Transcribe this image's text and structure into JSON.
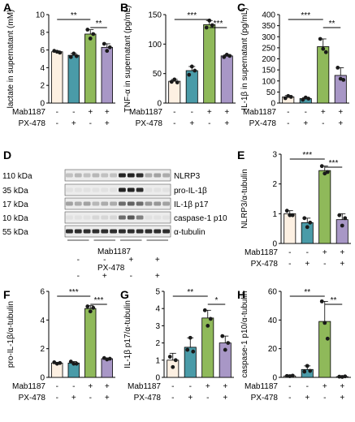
{
  "colors": {
    "ctrl": "#fdf0e2",
    "px": "#4a9ba8",
    "mab": "#8fb95a",
    "both": "#a897c6"
  },
  "groups": {
    "row1_label": "Mab1187",
    "row2_label": "PX-478",
    "row1_signs": [
      "-",
      "-",
      "+",
      "+"
    ],
    "row2_signs": [
      "-",
      "+",
      "-",
      "+"
    ]
  },
  "sig_labels": {
    "double": "**",
    "triple": "***",
    "single": "*"
  },
  "blot": {
    "letter": "D",
    "rows": [
      {
        "kda": "110 kDa",
        "name": "NLRP3"
      },
      {
        "kda": "35 kDa",
        "name": "pro-IL-1β"
      },
      {
        "kda": "17 kDa",
        "name": "IL-1β p17"
      },
      {
        "kda": "10 kDa",
        "name": "caspase-1 p10"
      },
      {
        "kda": "55 kDa",
        "name": "α-tubulin"
      }
    ],
    "mab_signs": [
      "-",
      "-",
      "+",
      "+"
    ],
    "px_signs": [
      "-",
      "+",
      "-",
      "+"
    ]
  },
  "chart_data": [
    {
      "id": "A",
      "type": "bar",
      "ylabel": "lactate in supernatant (mM)",
      "ylim": [
        0,
        10
      ],
      "yticks": [
        0,
        2,
        4,
        6,
        8,
        10
      ],
      "categories": [
        "-/-",
        "-/+",
        "+/-",
        "+/+"
      ],
      "values": [
        5.8,
        5.4,
        7.8,
        6.3
      ],
      "points": [
        [
          5.9,
          5.8,
          5.7
        ],
        [
          5.2,
          5.6,
          5.3
        ],
        [
          8.3,
          7.3,
          7.8
        ],
        [
          6.7,
          5.9,
          6.3
        ]
      ],
      "sig": [
        {
          "from": 0,
          "to": 2,
          "label": "**",
          "level": 0
        },
        {
          "from": 2,
          "to": 3,
          "label": "**",
          "level": 1
        }
      ]
    },
    {
      "id": "B",
      "type": "bar",
      "ylabel": "TNF-α in supernatant (pg/mL)",
      "ylim": [
        0,
        150
      ],
      "yticks": [
        0,
        50,
        100,
        150
      ],
      "categories": [
        "-/-",
        "-/+",
        "+/-",
        "+/+"
      ],
      "values": [
        37,
        55,
        133,
        80
      ],
      "points": [
        [
          36,
          40,
          35
        ],
        [
          48,
          62,
          55
        ],
        [
          128,
          140,
          132
        ],
        [
          78,
          82,
          80
        ]
      ],
      "sig": [
        {
          "from": 0,
          "to": 2,
          "label": "***",
          "level": 0
        },
        {
          "from": 2,
          "to": 3,
          "label": "***",
          "level": 1
        }
      ]
    },
    {
      "id": "C",
      "type": "bar",
      "ylabel": "IL-1β in supernatant (pg/mL)",
      "ylim": [
        0,
        400
      ],
      "yticks": [
        0,
        50,
        100,
        150,
        200,
        250,
        300,
        350,
        400
      ],
      "categories": [
        "-/-",
        "-/+",
        "+/-",
        "+/+"
      ],
      "values": [
        28,
        20,
        255,
        125
      ],
      "points": [
        [
          22,
          32,
          28
        ],
        [
          15,
          25,
          20
        ],
        [
          290,
          245,
          230
        ],
        [
          160,
          110,
          105
        ]
      ],
      "sig": [
        {
          "from": 0,
          "to": 2,
          "label": "***",
          "level": 0
        },
        {
          "from": 2,
          "to": 3,
          "label": "**",
          "level": 1
        }
      ]
    },
    {
      "id": "E",
      "type": "bar",
      "ylabel": "NLRP3/α-tubulin",
      "ylim": [
        0,
        3
      ],
      "yticks": [
        0,
        1,
        2,
        3
      ],
      "categories": [
        "-/-",
        "-/+",
        "+/-",
        "+/+"
      ],
      "values": [
        1.0,
        0.7,
        2.45,
        0.8
      ],
      "points": [
        [
          1.1,
          0.95,
          0.95
        ],
        [
          0.85,
          0.55,
          0.7
        ],
        [
          2.6,
          2.35,
          2.4
        ],
        [
          0.95,
          0.6,
          0.85
        ]
      ],
      "sig": [
        {
          "from": 0,
          "to": 2,
          "label": "***",
          "level": 0
        },
        {
          "from": 2,
          "to": 3,
          "label": "***",
          "level": 1
        }
      ]
    },
    {
      "id": "F",
      "type": "bar",
      "ylabel": "pro-IL-1β/α-tubulin",
      "ylim": [
        0,
        6
      ],
      "yticks": [
        0,
        2,
        4,
        6
      ],
      "categories": [
        "-/-",
        "-/+",
        "+/-",
        "+/+"
      ],
      "values": [
        1.0,
        1.0,
        4.8,
        1.3
      ],
      "points": [
        [
          1.05,
          0.95,
          1.0
        ],
        [
          1.1,
          0.95,
          0.95
        ],
        [
          4.95,
          4.6,
          4.85
        ],
        [
          1.35,
          1.25,
          1.3
        ]
      ],
      "sig": [
        {
          "from": 0,
          "to": 2,
          "label": "***",
          "level": 0
        },
        {
          "from": 2,
          "to": 3,
          "label": "***",
          "level": 1
        }
      ]
    },
    {
      "id": "G",
      "type": "bar",
      "ylabel": "IL-1β p17/α-tubulin",
      "ylim": [
        0,
        5
      ],
      "yticks": [
        0,
        1,
        2,
        3,
        4,
        5
      ],
      "categories": [
        "-/-",
        "-/+",
        "+/-",
        "+/+"
      ],
      "values": [
        1.0,
        1.75,
        3.45,
        2.0
      ],
      "points": [
        [
          1.2,
          0.6,
          1.0
        ],
        [
          1.6,
          2.3,
          1.5
        ],
        [
          3.9,
          3.0,
          3.4
        ],
        [
          2.4,
          1.6,
          2.0
        ]
      ],
      "sig": [
        {
          "from": 0,
          "to": 2,
          "label": "**",
          "level": 0
        },
        {
          "from": 2,
          "to": 3,
          "label": "*",
          "level": 1
        }
      ]
    },
    {
      "id": "H",
      "type": "bar",
      "ylabel": "caspase-1 p10/α-tubulin",
      "ylim": [
        0,
        60
      ],
      "yticks": [
        0,
        20,
        40,
        60
      ],
      "categories": [
        "-/-",
        "-/+",
        "+/-",
        "+/+"
      ],
      "values": [
        1.0,
        5.5,
        39,
        0.5
      ],
      "points": [
        [
          1.0,
          0.8,
          1.2
        ],
        [
          4,
          8,
          4.5
        ],
        [
          53,
          38,
          27
        ],
        [
          0.5,
          0.3,
          0.7
        ]
      ],
      "sig": [
        {
          "from": 0,
          "to": 2,
          "label": "**",
          "level": 0
        },
        {
          "from": 2,
          "to": 3,
          "label": "**",
          "level": 1
        }
      ]
    }
  ]
}
